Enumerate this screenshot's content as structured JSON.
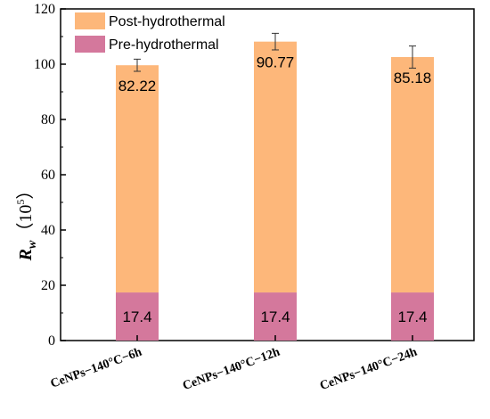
{
  "chart_data": {
    "type": "bar",
    "stacked": true,
    "categories": [
      "CeNPs−140°C−6h",
      "CeNPs−140°C−12h",
      "CeNPs−140°C−24h"
    ],
    "series": [
      {
        "name": "Pre-hydrothermal",
        "values": [
          17.4,
          17.4,
          17.4
        ],
        "labels": [
          "17.4",
          "17.4",
          "17.4"
        ],
        "color": "#d4789c"
      },
      {
        "name": "Post-hydrothermal",
        "values": [
          82.22,
          90.77,
          85.18
        ],
        "labels": [
          "82.22",
          "90.77",
          "85.18"
        ],
        "color": "#fdb77a",
        "errors": [
          2.2,
          3.0,
          4.0
        ]
      }
    ],
    "ylabel_main": "R",
    "ylabel_sub": "w",
    "ylabel_unit_open": "（",
    "ylabel_unit_base": "10",
    "ylabel_unit_exp": "5",
    "ylabel_unit_close": "）",
    "ylim": [
      0,
      120
    ],
    "yticks": [
      0,
      20,
      40,
      60,
      80,
      100,
      120
    ],
    "grid": false,
    "legend_position": "top-left"
  }
}
